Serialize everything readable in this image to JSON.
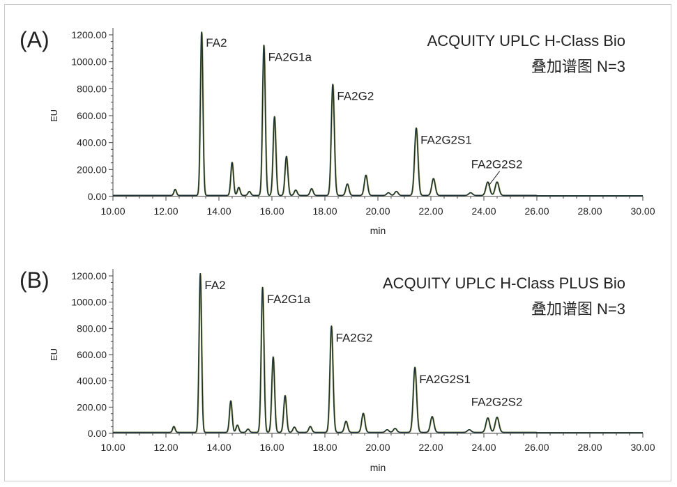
{
  "chart_data": [
    {
      "type": "line",
      "panel_label": "(A)",
      "title_lines": [
        "ACQUITY UPLC H-Class Bio",
        "叠加谱图 N=3"
      ],
      "xlabel": "min",
      "ylabel": "EU",
      "xlim": [
        10,
        30
      ],
      "ylim": [
        0,
        1200
      ],
      "x_ticks": [
        "10.00",
        "12.00",
        "14.00",
        "16.00",
        "18.00",
        "20.00",
        "22.00",
        "24.00",
        "26.00",
        "28.00",
        "30.00"
      ],
      "y_ticks": [
        "0.00",
        "200.00",
        "400.00",
        "600.00",
        "800.00",
        "1000.00",
        "1200.00"
      ],
      "grid": false,
      "peaks": [
        {
          "x": 12.35,
          "y": 45
        },
        {
          "x": 13.35,
          "y": 1220
        },
        {
          "x": 14.5,
          "y": 245
        },
        {
          "x": 14.75,
          "y": 60
        },
        {
          "x": 15.15,
          "y": 30
        },
        {
          "x": 15.7,
          "y": 1115
        },
        {
          "x": 16.1,
          "y": 585
        },
        {
          "x": 16.55,
          "y": 290
        },
        {
          "x": 16.9,
          "y": 40
        },
        {
          "x": 17.5,
          "y": 50
        },
        {
          "x": 18.3,
          "y": 825
        },
        {
          "x": 18.85,
          "y": 85
        },
        {
          "x": 19.55,
          "y": 150
        },
        {
          "x": 20.4,
          "y": 20
        },
        {
          "x": 20.7,
          "y": 30
        },
        {
          "x": 21.45,
          "y": 500
        },
        {
          "x": 22.1,
          "y": 125
        },
        {
          "x": 23.5,
          "y": 20
        },
        {
          "x": 24.15,
          "y": 100
        },
        {
          "x": 24.5,
          "y": 100
        }
      ],
      "annotations": [
        {
          "text": "FA2",
          "x": 13.35,
          "y": 1220
        },
        {
          "text": "FA2G1a",
          "x": 15.7,
          "y": 1115
        },
        {
          "text": "FA2G2",
          "x": 18.3,
          "y": 825
        },
        {
          "text": "FA2G2S1",
          "x": 21.45,
          "y": 500
        },
        {
          "text": "FA2G2S2",
          "x": 24.15,
          "y": 100
        }
      ]
    },
    {
      "type": "line",
      "panel_label": "(B)",
      "title_lines": [
        "ACQUITY UPLC H-Class PLUS Bio",
        "叠加谱图 N=3"
      ],
      "xlabel": "min",
      "ylabel": "EU",
      "xlim": [
        10,
        30
      ],
      "ylim": [
        0,
        1200
      ],
      "x_ticks": [
        "10.00",
        "12.00",
        "14.00",
        "16.00",
        "18.00",
        "20.00",
        "22.00",
        "24.00",
        "26.00",
        "28.00",
        "30.00"
      ],
      "y_ticks": [
        "0.00",
        "200.00",
        "400.00",
        "600.00",
        "800.00",
        "1000.00",
        "1200.00"
      ],
      "grid": false,
      "peaks": [
        {
          "x": 12.3,
          "y": 45
        },
        {
          "x": 13.3,
          "y": 1210
        },
        {
          "x": 14.45,
          "y": 240
        },
        {
          "x": 14.7,
          "y": 55
        },
        {
          "x": 15.1,
          "y": 25
        },
        {
          "x": 15.65,
          "y": 1105
        },
        {
          "x": 16.05,
          "y": 575
        },
        {
          "x": 16.5,
          "y": 280
        },
        {
          "x": 16.85,
          "y": 40
        },
        {
          "x": 17.45,
          "y": 45
        },
        {
          "x": 18.25,
          "y": 810
        },
        {
          "x": 18.8,
          "y": 85
        },
        {
          "x": 19.45,
          "y": 145
        },
        {
          "x": 20.35,
          "y": 20
        },
        {
          "x": 20.65,
          "y": 30
        },
        {
          "x": 21.4,
          "y": 495
        },
        {
          "x": 22.05,
          "y": 120
        },
        {
          "x": 23.45,
          "y": 20
        },
        {
          "x": 24.15,
          "y": 110
        },
        {
          "x": 24.5,
          "y": 115
        }
      ],
      "annotations": [
        {
          "text": "FA2",
          "x": 13.3,
          "y": 1210
        },
        {
          "text": "FA2G1a",
          "x": 15.65,
          "y": 1105
        },
        {
          "text": "FA2G2",
          "x": 18.25,
          "y": 810
        },
        {
          "text": "FA2G2S1",
          "x": 21.4,
          "y": 495
        },
        {
          "text": "FA2G2S2",
          "x": 24.15,
          "y": 110
        }
      ]
    }
  ],
  "colors": {
    "trace_1": "#1b2b3a",
    "trace_2": "#3f6b45",
    "trace_3": "#b4ac3c",
    "axis": "#444444",
    "frame": "#c8c8c8"
  }
}
